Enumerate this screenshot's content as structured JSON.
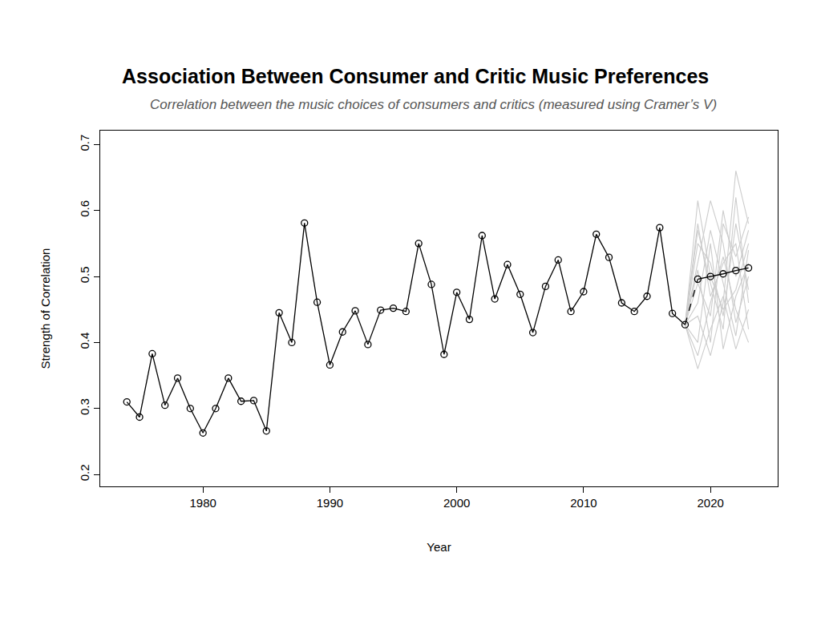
{
  "chart_data": {
    "type": "line",
    "title": "Association Between Consumer and Critic Music Preferences",
    "subtitle": "Correlation between the music choices of consumers and critics (measured using Cramer’s V)",
    "x_label": "Year",
    "y_label": "Strength of Correlation",
    "xlim": [
      1971.9,
      2025.3
    ],
    "xticks": [
      1980,
      1990,
      2000,
      2010,
      2020
    ],
    "ylim": [
      0.182,
      0.721
    ],
    "yticks": [
      0.2,
      0.3,
      0.4,
      0.5,
      0.6,
      0.7
    ],
    "grid": false,
    "series": [
      {
        "color": "#cccccc",
        "marker": "none",
        "line_style": "solid",
        "x": [
          2018,
          2019,
          2020,
          2021,
          2022,
          2023
        ],
        "values": [
          0.427,
          0.615,
          0.5,
          0.45,
          0.48,
          0.55
        ]
      },
      {
        "color": "#cccccc",
        "marker": "none",
        "line_style": "solid",
        "x": [
          2018,
          2019,
          2020,
          2021,
          2022,
          2023
        ],
        "values": [
          0.427,
          0.36,
          0.42,
          0.47,
          0.39,
          0.45
        ]
      },
      {
        "color": "#cccccc",
        "marker": "none",
        "line_style": "solid",
        "x": [
          2018,
          2019,
          2020,
          2021,
          2022,
          2023
        ],
        "values": [
          0.427,
          0.52,
          0.615,
          0.55,
          0.43,
          0.5
        ]
      },
      {
        "color": "#cccccc",
        "marker": "none",
        "line_style": "solid",
        "x": [
          2018,
          2019,
          2020,
          2021,
          2022,
          2023
        ],
        "values": [
          0.427,
          0.44,
          0.38,
          0.46,
          0.66,
          0.58
        ]
      },
      {
        "color": "#cccccc",
        "marker": "none",
        "line_style": "solid",
        "x": [
          2018,
          2019,
          2020,
          2021,
          2022,
          2023
        ],
        "values": [
          0.427,
          0.58,
          0.47,
          0.52,
          0.55,
          0.42
        ]
      },
      {
        "color": "#cccccc",
        "marker": "none",
        "line_style": "solid",
        "x": [
          2018,
          2019,
          2020,
          2021,
          2022,
          2023
        ],
        "values": [
          0.427,
          0.4,
          0.55,
          0.39,
          0.47,
          0.52
        ]
      },
      {
        "color": "#cccccc",
        "marker": "none",
        "line_style": "solid",
        "x": [
          2018,
          2019,
          2020,
          2021,
          2022,
          2023
        ],
        "values": [
          0.427,
          0.49,
          0.44,
          0.6,
          0.5,
          0.57
        ]
      },
      {
        "color": "#cccccc",
        "marker": "none",
        "line_style": "solid",
        "x": [
          2018,
          2019,
          2020,
          2021,
          2022,
          2023
        ],
        "values": [
          0.427,
          0.55,
          0.52,
          0.44,
          0.58,
          0.48
        ]
      },
      {
        "color": "#cccccc",
        "marker": "none",
        "line_style": "solid",
        "x": [
          2018,
          2019,
          2020,
          2021,
          2022,
          2023
        ],
        "values": [
          0.427,
          0.46,
          0.57,
          0.49,
          0.41,
          0.54
        ]
      },
      {
        "color": "#cccccc",
        "marker": "none",
        "line_style": "solid",
        "x": [
          2018,
          2019,
          2020,
          2021,
          2022,
          2023
        ],
        "values": [
          0.427,
          0.38,
          0.46,
          0.53,
          0.45,
          0.4
        ]
      },
      {
        "color": "#cccccc",
        "marker": "none",
        "line_style": "solid",
        "x": [
          2018,
          2019,
          2020,
          2021,
          2022,
          2023
        ],
        "values": [
          0.427,
          0.51,
          0.4,
          0.58,
          0.53,
          0.59
        ]
      },
      {
        "color": "#cccccc",
        "marker": "none",
        "line_style": "solid",
        "x": [
          2018,
          2019,
          2020,
          2021,
          2022,
          2023
        ],
        "values": [
          0.427,
          0.57,
          0.49,
          0.42,
          0.62,
          0.46
        ]
      },
      {
        "color": "#000000",
        "marker": "circle-open",
        "line_style": "solid",
        "x": [
          1974,
          1975,
          1976,
          1977,
          1978,
          1979,
          1980,
          1981,
          1982,
          1983,
          1984,
          1985,
          1986,
          1987,
          1988,
          1989,
          1990,
          1991,
          1992,
          1993,
          1994,
          1995,
          1996,
          1997,
          1998,
          1999,
          2000,
          2001,
          2002,
          2003,
          2004,
          2005,
          2006,
          2007,
          2008,
          2009,
          2010,
          2011,
          2012,
          2013,
          2014,
          2015,
          2016,
          2017,
          2018
        ],
        "values": [
          0.31,
          0.287,
          0.383,
          0.305,
          0.346,
          0.3,
          0.263,
          0.3,
          0.346,
          0.311,
          0.312,
          0.266,
          0.445,
          0.4,
          0.581,
          0.461,
          0.366,
          0.416,
          0.448,
          0.397,
          0.449,
          0.452,
          0.447,
          0.55,
          0.488,
          0.382,
          0.476,
          0.435,
          0.562,
          0.466,
          0.518,
          0.473,
          0.415,
          0.485,
          0.525,
          0.447,
          0.477,
          0.564,
          0.529,
          0.46,
          0.447,
          0.47,
          0.574,
          0.444,
          0.427
        ]
      },
      {
        "color": "#000000",
        "marker": "none",
        "line_style": "dashed",
        "x": [
          2018,
          2019
        ],
        "values": [
          0.427,
          0.496
        ]
      },
      {
        "color": "#000000",
        "marker": "circle-open",
        "line_style": "solid",
        "x": [
          2019,
          2020,
          2021,
          2022,
          2023
        ],
        "values": [
          0.496,
          0.5,
          0.504,
          0.509,
          0.513
        ]
      }
    ]
  }
}
